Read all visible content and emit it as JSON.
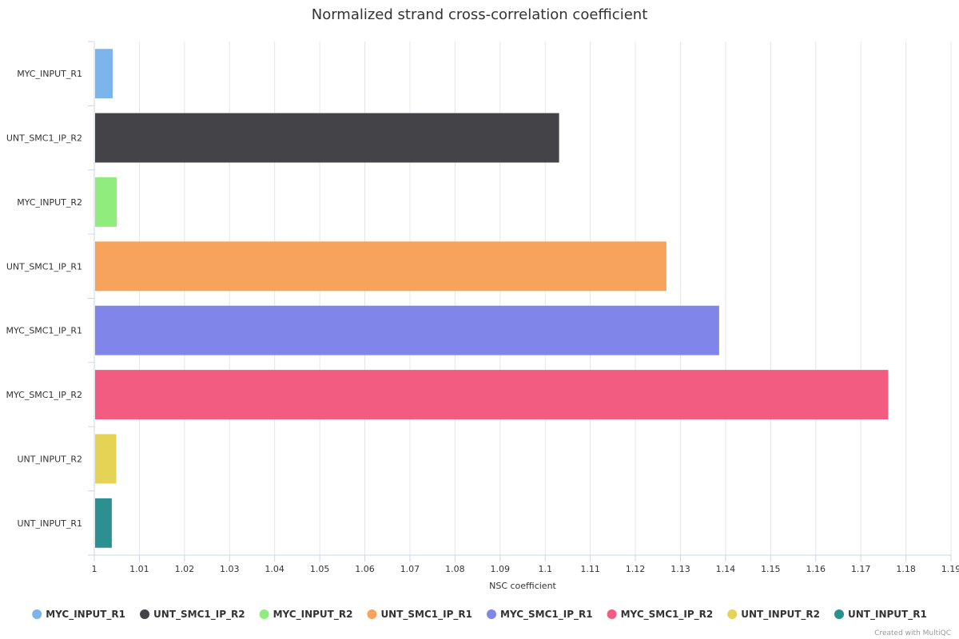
{
  "chart_data": {
    "type": "bar",
    "orientation": "horizontal",
    "title": "Normalized strand cross-correlation coefficient",
    "xlabel": "NSC coefficient",
    "ylabel": "",
    "xlim": [
      1,
      1.19
    ],
    "xticks": [
      "1",
      "1.01",
      "1.02",
      "1.03",
      "1.04",
      "1.05",
      "1.06",
      "1.07",
      "1.08",
      "1.09",
      "1.1",
      "1.11",
      "1.12",
      "1.13",
      "1.14",
      "1.15",
      "1.16",
      "1.17",
      "1.18",
      "1.19"
    ],
    "grid": true,
    "legend_position": "bottom",
    "categories": [
      "MYC_INPUT_R1",
      "UNT_SMC1_IP_R2",
      "MYC_INPUT_R2",
      "UNT_SMC1_IP_R1",
      "MYC_SMC1_IP_R1",
      "MYC_SMC1_IP_R2",
      "UNT_INPUT_R2",
      "UNT_INPUT_R1"
    ],
    "values": [
      1.0039,
      1.1029,
      1.0048,
      1.1267,
      1.1384,
      1.1759,
      1.0047,
      1.0037
    ],
    "colors": [
      "#7cb5ec",
      "#434348",
      "#90ed7d",
      "#f7a35c",
      "#8085e9",
      "#f15c80",
      "#e4d354",
      "#2b908f"
    ]
  },
  "credit": "Created with MultiQC"
}
